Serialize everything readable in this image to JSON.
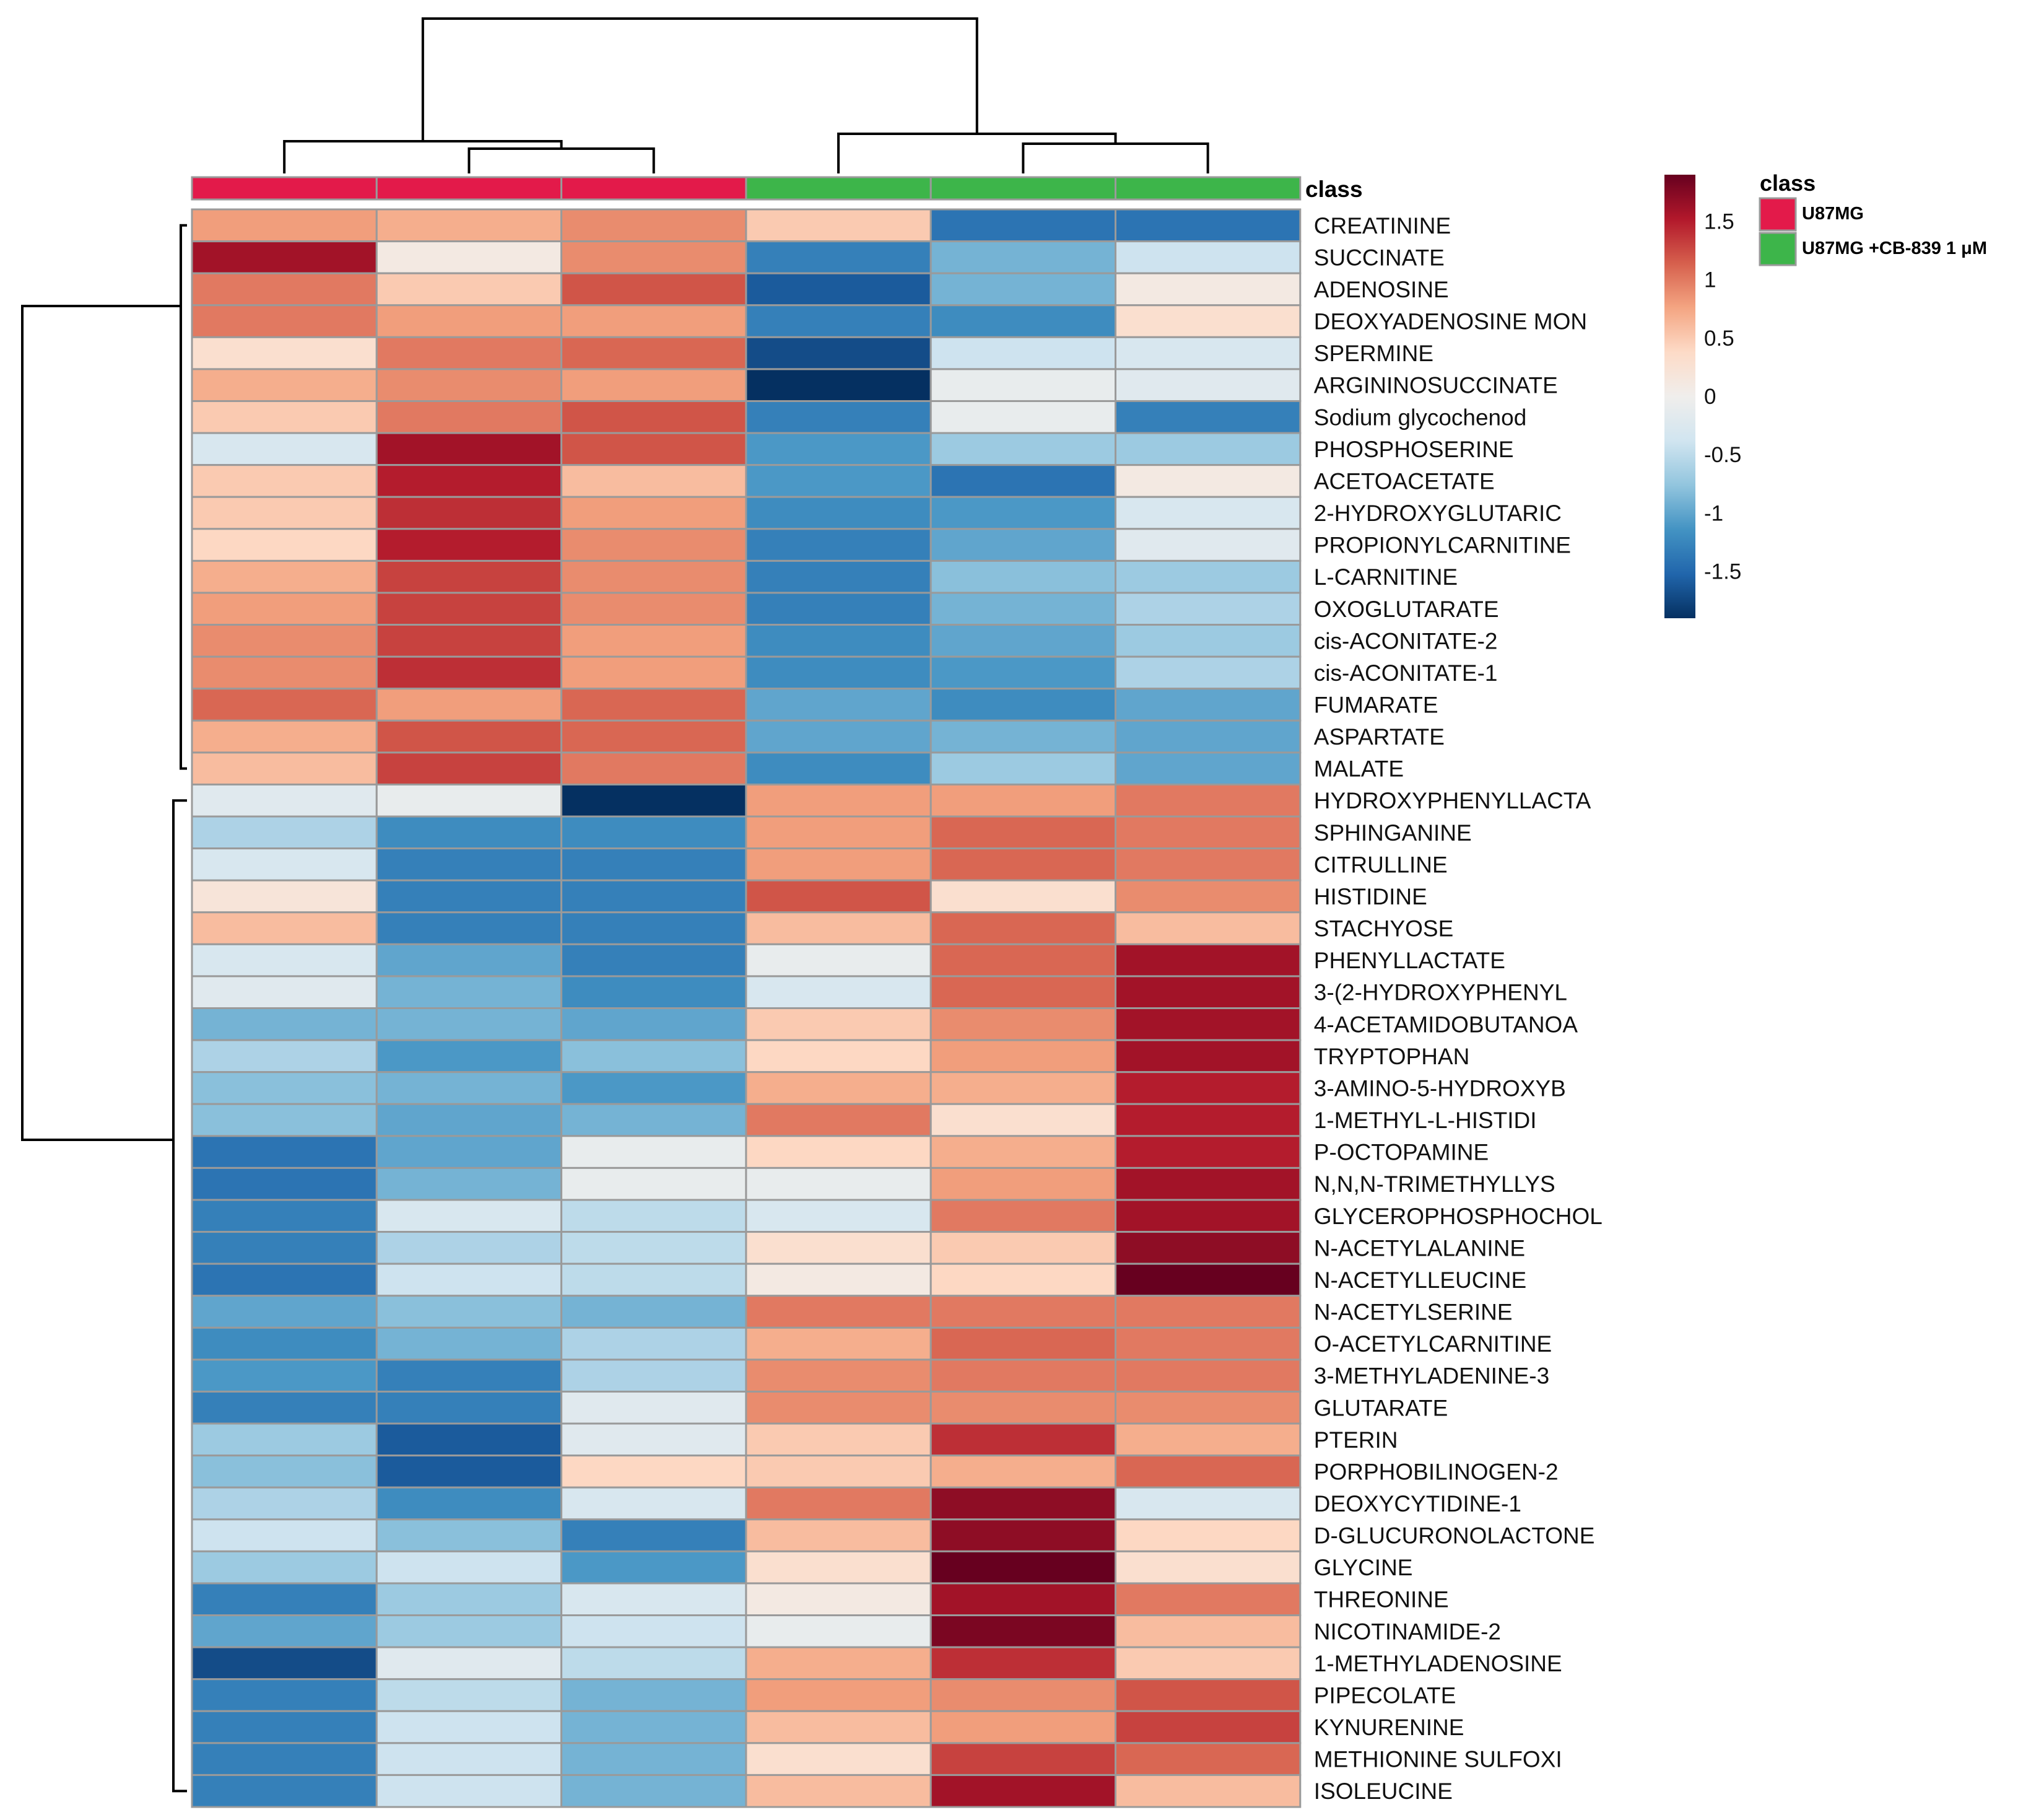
{
  "chart_data": {
    "type": "heatmap",
    "title": "",
    "annotation_title": "class",
    "legend": {
      "title": "class",
      "items": [
        {
          "label": "U87MG",
          "color": "#E31A4A"
        },
        {
          "label": "U87MG +CB-839 1 μM",
          "color": "#3DB54A"
        }
      ]
    },
    "colorbar": {
      "range": [
        -1.9,
        1.9
      ],
      "ticks": [
        {
          "value": 1.5,
          "label": "1.5"
        },
        {
          "value": 1,
          "label": "1"
        },
        {
          "value": 0.5,
          "label": "0.5"
        },
        {
          "value": 0,
          "label": "0"
        },
        {
          "value": -0.5,
          "label": "-0.5"
        },
        {
          "value": -1,
          "label": "-1"
        },
        {
          "value": -1.5,
          "label": "-1.5"
        }
      ],
      "colors": [
        "#053061",
        "#2166AC",
        "#4393C3",
        "#92C5DE",
        "#D1E5F0",
        "#F0EEEC",
        "#FDDBC7",
        "#F4A582",
        "#D6604D",
        "#B2182B",
        "#67001F"
      ]
    },
    "column_classes": [
      "U87MG",
      "U87MG",
      "U87MG",
      "U87MG +CB-839 1 μM",
      "U87MG +CB-839 1 μM",
      "U87MG +CB-839 1 μM"
    ],
    "class_colors": {
      "U87MG": "#E31A4A",
      "U87MG +CB-839 1 μM": "#3DB54A"
    },
    "rows": [
      {
        "name": "CREATININE",
        "values": [
          0.8,
          0.7,
          0.9,
          0.5,
          -1.4,
          -1.4
        ]
      },
      {
        "name": "SUCCINATE",
        "values": [
          1.6,
          0.1,
          0.9,
          -1.3,
          -0.9,
          -0.4
        ]
      },
      {
        "name": "ADENOSINE",
        "values": [
          1.0,
          0.5,
          1.2,
          -1.6,
          -0.9,
          0.1
        ]
      },
      {
        "name": "DEOXYADENOSINE MON",
        "values": [
          1.0,
          0.8,
          0.8,
          -1.3,
          -1.2,
          0.3
        ]
      },
      {
        "name": "SPERMINE",
        "values": [
          0.3,
          1.0,
          1.1,
          -1.7,
          -0.4,
          -0.3
        ]
      },
      {
        "name": "ARGININOSUCCINATE",
        "values": [
          0.7,
          0.9,
          0.8,
          -1.9,
          -0.1,
          -0.2
        ]
      },
      {
        "name": "Sodium glycochenod",
        "values": [
          0.5,
          1.0,
          1.2,
          -1.3,
          -0.1,
          -1.3
        ]
      },
      {
        "name": "PHOSPHOSERINE",
        "values": [
          -0.3,
          1.6,
          1.2,
          -1.1,
          -0.7,
          -0.7
        ]
      },
      {
        "name": "ACETOACETATE",
        "values": [
          0.5,
          1.5,
          0.6,
          -1.1,
          -1.4,
          0.1
        ]
      },
      {
        "name": "2-HYDROXYGLUTARIC",
        "values": [
          0.5,
          1.4,
          0.8,
          -1.2,
          -1.1,
          -0.3
        ]
      },
      {
        "name": "PROPIONYLCARNITINE",
        "values": [
          0.4,
          1.5,
          0.9,
          -1.3,
          -1.0,
          -0.2
        ]
      },
      {
        "name": "L-CARNITINE",
        "values": [
          0.7,
          1.3,
          0.9,
          -1.3,
          -0.8,
          -0.7
        ]
      },
      {
        "name": "OXOGLUTARATE",
        "values": [
          0.8,
          1.3,
          0.9,
          -1.3,
          -0.9,
          -0.6
        ]
      },
      {
        "name": "cis-ACONITATE-2",
        "values": [
          0.9,
          1.3,
          0.8,
          -1.2,
          -1.0,
          -0.7
        ]
      },
      {
        "name": "cis-ACONITATE-1",
        "values": [
          0.9,
          1.4,
          0.8,
          -1.2,
          -1.1,
          -0.6
        ]
      },
      {
        "name": "FUMARATE",
        "values": [
          1.1,
          0.8,
          1.1,
          -1.0,
          -1.2,
          -1.0
        ]
      },
      {
        "name": "ASPARTATE",
        "values": [
          0.7,
          1.2,
          1.1,
          -1.0,
          -0.9,
          -1.0
        ]
      },
      {
        "name": "MALATE",
        "values": [
          0.6,
          1.3,
          1.0,
          -1.2,
          -0.7,
          -1.0
        ]
      },
      {
        "name": "HYDROXYPHENYLLACTA",
        "values": [
          -0.2,
          -0.1,
          -1.9,
          0.8,
          0.8,
          1.0
        ]
      },
      {
        "name": "SPHINGANINE",
        "values": [
          -0.6,
          -1.2,
          -1.2,
          0.8,
          1.1,
          1.0
        ]
      },
      {
        "name": "CITRULLINE",
        "values": [
          -0.3,
          -1.3,
          -1.3,
          0.8,
          1.1,
          1.0
        ]
      },
      {
        "name": "HISTIDINE",
        "values": [
          0.2,
          -1.3,
          -1.3,
          1.2,
          0.3,
          0.9
        ]
      },
      {
        "name": "STACHYOSE",
        "values": [
          0.6,
          -1.3,
          -1.3,
          0.6,
          1.1,
          0.6
        ]
      },
      {
        "name": "PHENYLLACTATE",
        "values": [
          -0.3,
          -1.0,
          -1.3,
          -0.1,
          1.1,
          1.6
        ]
      },
      {
        "name": "3-(2-HYDROXYPHENYL",
        "values": [
          -0.2,
          -0.9,
          -1.2,
          -0.3,
          1.1,
          1.6
        ]
      },
      {
        "name": "4-ACETAMIDOBUTANOA",
        "values": [
          -0.9,
          -0.9,
          -1.0,
          0.5,
          0.9,
          1.6
        ]
      },
      {
        "name": "TRYPTOPHAN",
        "values": [
          -0.6,
          -1.1,
          -0.8,
          0.4,
          0.8,
          1.6
        ]
      },
      {
        "name": "3-AMINO-5-HYDROXYB",
        "values": [
          -0.8,
          -0.9,
          -1.1,
          0.7,
          0.7,
          1.5
        ]
      },
      {
        "name": "1-METHYL-L-HISTIDI",
        "values": [
          -0.8,
          -1.0,
          -0.9,
          1.0,
          0.3,
          1.5
        ]
      },
      {
        "name": "P-OCTOPAMINE",
        "values": [
          -1.4,
          -1.0,
          -0.1,
          0.4,
          0.7,
          1.5
        ]
      },
      {
        "name": "N,N,N-TRIMETHYLLYS",
        "values": [
          -1.4,
          -0.9,
          -0.1,
          -0.1,
          0.8,
          1.6
        ]
      },
      {
        "name": "GLYCEROPHOSPHOCHOL",
        "values": [
          -1.3,
          -0.3,
          -0.5,
          -0.3,
          1.0,
          1.6
        ]
      },
      {
        "name": "N-ACETYLALANINE",
        "values": [
          -1.3,
          -0.6,
          -0.5,
          0.3,
          0.5,
          1.7
        ]
      },
      {
        "name": "N-ACETYLLEUCINE",
        "values": [
          -1.4,
          -0.4,
          -0.5,
          0.1,
          0.4,
          1.9
        ]
      },
      {
        "name": "N-ACETYLSERINE",
        "values": [
          -1.0,
          -0.8,
          -0.9,
          1.0,
          1.0,
          1.0
        ]
      },
      {
        "name": "O-ACETYLCARNITINE",
        "values": [
          -1.2,
          -0.9,
          -0.6,
          0.7,
          1.1,
          1.0
        ]
      },
      {
        "name": "3-METHYLADENINE-3",
        "values": [
          -1.1,
          -1.3,
          -0.6,
          0.9,
          1.0,
          1.0
        ]
      },
      {
        "name": "GLUTARATE",
        "values": [
          -1.3,
          -1.3,
          -0.2,
          0.9,
          0.9,
          0.9
        ]
      },
      {
        "name": "PTERIN",
        "values": [
          -0.7,
          -1.6,
          -0.2,
          0.5,
          1.4,
          0.7
        ]
      },
      {
        "name": "PORPHOBILINOGEN-2",
        "values": [
          -0.8,
          -1.6,
          0.4,
          0.5,
          0.7,
          1.1
        ]
      },
      {
        "name": "DEOXYCYTIDINE-1",
        "values": [
          -0.6,
          -1.2,
          -0.3,
          1.0,
          1.7,
          -0.3
        ]
      },
      {
        "name": "D-GLUCURONOLACTONE",
        "values": [
          -0.4,
          -0.8,
          -1.3,
          0.6,
          1.7,
          0.4
        ]
      },
      {
        "name": "GLYCINE",
        "values": [
          -0.7,
          -0.4,
          -1.1,
          0.3,
          1.9,
          0.3
        ]
      },
      {
        "name": "THREONINE",
        "values": [
          -1.3,
          -0.7,
          -0.3,
          0.1,
          1.6,
          1.0
        ]
      },
      {
        "name": "NICOTINAMIDE-2",
        "values": [
          -1.0,
          -0.7,
          -0.4,
          -0.1,
          1.8,
          0.6
        ]
      },
      {
        "name": "1-METHYLADENOSINE",
        "values": [
          -1.7,
          -0.2,
          -0.5,
          0.7,
          1.4,
          0.5
        ]
      },
      {
        "name": "PIPECOLATE",
        "values": [
          -1.3,
          -0.5,
          -0.9,
          0.8,
          0.9,
          1.2
        ]
      },
      {
        "name": "KYNURENINE",
        "values": [
          -1.3,
          -0.4,
          -0.9,
          0.6,
          0.8,
          1.3
        ]
      },
      {
        "name": "METHIONINE SULFOXI",
        "values": [
          -1.3,
          -0.4,
          -0.9,
          0.3,
          1.3,
          1.1
        ]
      },
      {
        "name": "ISOLEUCINE",
        "values": [
          -1.3,
          -0.4,
          -0.9,
          0.6,
          1.6,
          0.6
        ]
      }
    ],
    "column_dendrogram": {
      "clusters": [
        [
          0,
          [
            1,
            2
          ]
        ],
        [
          3,
          [
            4,
            5
          ]
        ]
      ]
    },
    "row_dendrogram": {
      "top_cluster_size": 18,
      "bottom_cluster_size": 32
    }
  }
}
